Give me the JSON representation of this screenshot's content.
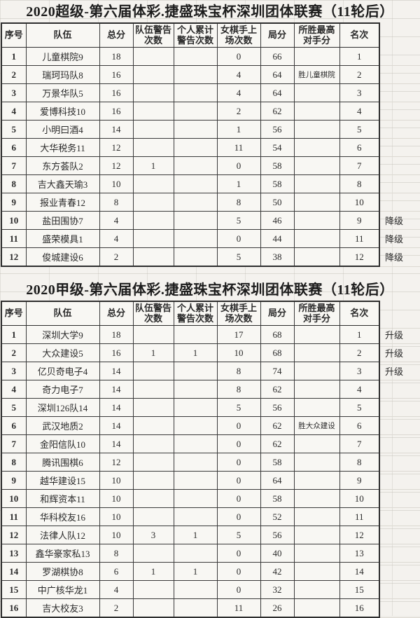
{
  "page": {
    "background": "#f4f2ee",
    "border_color": "#2e2e2e",
    "text_color": "#2a2a2a"
  },
  "tables": [
    {
      "title": "2020超级-第六届体彩.捷盛珠宝杯深圳团体联赛（11轮后）",
      "headers": [
        "序号",
        "队伍",
        "总分",
        "队伍警告次数",
        "个人累计警告次数",
        "女棋手上场次数",
        "局分",
        "所胜最高对手分",
        "名次"
      ],
      "rows": [
        {
          "num": "1",
          "team": "儿童棋院9",
          "total": "18",
          "team_warn": "",
          "pers_warn": "",
          "female": "0",
          "board": "66",
          "best_win": "",
          "rank": "1",
          "note": ""
        },
        {
          "num": "2",
          "team": "瑞珂玛队8",
          "total": "16",
          "team_warn": "",
          "pers_warn": "",
          "female": "4",
          "board": "64",
          "best_win": "胜儿童棋院",
          "rank": "2",
          "note": ""
        },
        {
          "num": "3",
          "team": "万景华队5",
          "total": "16",
          "team_warn": "",
          "pers_warn": "",
          "female": "4",
          "board": "64",
          "best_win": "",
          "rank": "3",
          "note": ""
        },
        {
          "num": "4",
          "team": "爱博科技10",
          "total": "16",
          "team_warn": "",
          "pers_warn": "",
          "female": "2",
          "board": "62",
          "best_win": "",
          "rank": "4",
          "note": ""
        },
        {
          "num": "5",
          "team": "小明曰酒4",
          "total": "14",
          "team_warn": "",
          "pers_warn": "",
          "female": "1",
          "board": "56",
          "best_win": "",
          "rank": "5",
          "note": ""
        },
        {
          "num": "6",
          "team": "大华税务11",
          "total": "12",
          "team_warn": "",
          "pers_warn": "",
          "female": "11",
          "board": "54",
          "best_win": "",
          "rank": "6",
          "note": ""
        },
        {
          "num": "7",
          "team": "东方荟队2",
          "total": "12",
          "team_warn": "1",
          "pers_warn": "",
          "female": "0",
          "board": "58",
          "best_win": "",
          "rank": "7",
          "note": ""
        },
        {
          "num": "8",
          "team": "吉大鑫天瑜3",
          "total": "10",
          "team_warn": "",
          "pers_warn": "",
          "female": "1",
          "board": "58",
          "best_win": "",
          "rank": "8",
          "note": ""
        },
        {
          "num": "9",
          "team": "报业青春12",
          "total": "8",
          "team_warn": "",
          "pers_warn": "",
          "female": "8",
          "board": "50",
          "best_win": "",
          "rank": "10",
          "note": ""
        },
        {
          "num": "10",
          "team": "盐田围协7",
          "total": "4",
          "team_warn": "",
          "pers_warn": "",
          "female": "5",
          "board": "46",
          "best_win": "",
          "rank": "9",
          "note": "降级"
        },
        {
          "num": "11",
          "team": "盛荣模具1",
          "total": "4",
          "team_warn": "",
          "pers_warn": "",
          "female": "0",
          "board": "44",
          "best_win": "",
          "rank": "11",
          "note": "降级"
        },
        {
          "num": "12",
          "team": "俊城建设6",
          "total": "2",
          "team_warn": "",
          "pers_warn": "",
          "female": "5",
          "board": "38",
          "best_win": "",
          "rank": "12",
          "note": "降级"
        }
      ]
    },
    {
      "title": "2020甲级-第六届体彩.捷盛珠宝杯深圳团体联赛（11轮后）",
      "headers": [
        "序号",
        "队伍",
        "总分",
        "队伍警告次数",
        "个人累计警告次数",
        "女棋手上场次数",
        "局分",
        "所胜最高对手分",
        "名次"
      ],
      "rows": [
        {
          "num": "1",
          "team": "深圳大学9",
          "total": "18",
          "team_warn": "",
          "pers_warn": "",
          "female": "17",
          "board": "68",
          "best_win": "",
          "rank": "1",
          "note": "升级"
        },
        {
          "num": "2",
          "team": "大众建设5",
          "total": "16",
          "team_warn": "1",
          "pers_warn": "1",
          "female": "10",
          "board": "68",
          "best_win": "",
          "rank": "2",
          "note": "升级"
        },
        {
          "num": "3",
          "team": "亿贝奇电子4",
          "total": "14",
          "team_warn": "",
          "pers_warn": "",
          "female": "8",
          "board": "74",
          "best_win": "",
          "rank": "3",
          "note": "升级"
        },
        {
          "num": "4",
          "team": "奇力电子7",
          "total": "14",
          "team_warn": "",
          "pers_warn": "",
          "female": "8",
          "board": "62",
          "best_win": "",
          "rank": "4",
          "note": ""
        },
        {
          "num": "5",
          "team": "深圳126队14",
          "total": "14",
          "team_warn": "",
          "pers_warn": "",
          "female": "5",
          "board": "56",
          "best_win": "",
          "rank": "5",
          "note": ""
        },
        {
          "num": "6",
          "team": "武汉地质2",
          "total": "14",
          "team_warn": "",
          "pers_warn": "",
          "female": "0",
          "board": "62",
          "best_win": "胜大众建设",
          "rank": "6",
          "note": ""
        },
        {
          "num": "7",
          "team": "金阳信队10",
          "total": "14",
          "team_warn": "",
          "pers_warn": "",
          "female": "0",
          "board": "62",
          "best_win": "",
          "rank": "7",
          "note": ""
        },
        {
          "num": "8",
          "team": "腾讯围棋6",
          "total": "12",
          "team_warn": "",
          "pers_warn": "",
          "female": "0",
          "board": "58",
          "best_win": "",
          "rank": "8",
          "note": ""
        },
        {
          "num": "9",
          "team": "越华建设15",
          "total": "10",
          "team_warn": "",
          "pers_warn": "",
          "female": "0",
          "board": "64",
          "best_win": "",
          "rank": "9",
          "note": ""
        },
        {
          "num": "10",
          "team": "和辉资本11",
          "total": "10",
          "team_warn": "",
          "pers_warn": "",
          "female": "0",
          "board": "58",
          "best_win": "",
          "rank": "10",
          "note": ""
        },
        {
          "num": "11",
          "team": "华科校友16",
          "total": "10",
          "team_warn": "",
          "pers_warn": "",
          "female": "0",
          "board": "52",
          "best_win": "",
          "rank": "11",
          "note": ""
        },
        {
          "num": "12",
          "team": "法律人队12",
          "total": "10",
          "team_warn": "3",
          "pers_warn": "1",
          "female": "5",
          "board": "56",
          "best_win": "",
          "rank": "12",
          "note": ""
        },
        {
          "num": "13",
          "team": "鑫华豪家私13",
          "total": "8",
          "team_warn": "",
          "pers_warn": "",
          "female": "0",
          "board": "40",
          "best_win": "",
          "rank": "13",
          "note": ""
        },
        {
          "num": "14",
          "team": "罗湖棋协8",
          "total": "6",
          "team_warn": "1",
          "pers_warn": "1",
          "female": "0",
          "board": "42",
          "best_win": "",
          "rank": "14",
          "note": ""
        },
        {
          "num": "15",
          "team": "中广核华龙1",
          "total": "4",
          "team_warn": "",
          "pers_warn": "",
          "female": "0",
          "board": "32",
          "best_win": "",
          "rank": "15",
          "note": ""
        },
        {
          "num": "16",
          "team": "吉大校友3",
          "total": "2",
          "team_warn": "",
          "pers_warn": "",
          "female": "11",
          "board": "26",
          "best_win": "",
          "rank": "16",
          "note": ""
        }
      ]
    }
  ]
}
